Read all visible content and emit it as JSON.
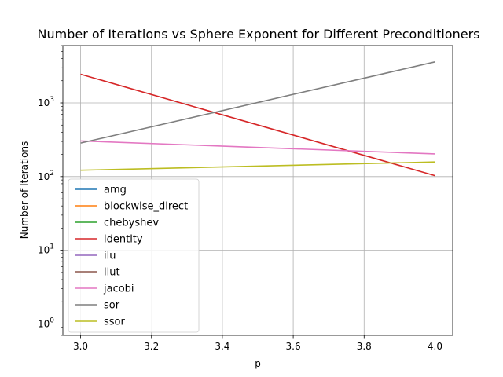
{
  "chart_data": {
    "type": "line",
    "title": "Number of Iterations vs Sphere Exponent for Different Preconditioners",
    "xlabel": "p",
    "ylabel": "Number of Iterations",
    "yscale": "log",
    "xlim": [
      2.95,
      4.05
    ],
    "ylim": [
      0.7,
      6000
    ],
    "x": [
      3.0,
      4.0
    ],
    "xticks": [
      3.0,
      3.2,
      3.4,
      3.6,
      3.8,
      4.0
    ],
    "xtick_labels": [
      "3.0",
      "3.2",
      "3.4",
      "3.6",
      "3.8",
      "4.0"
    ],
    "yticks": [
      1,
      10,
      100,
      1000
    ],
    "ytick_labels": [
      "10",
      "10",
      "10",
      "10"
    ],
    "ytick_exponents": [
      "0",
      "1",
      "2",
      "3"
    ],
    "grid": true,
    "legend_position": "lower-left",
    "series": [
      {
        "name": "amg",
        "color": "#1f77b4",
        "values": [
          null,
          null
        ]
      },
      {
        "name": "blockwise_direct",
        "color": "#ff7f0e",
        "values": [
          null,
          null
        ]
      },
      {
        "name": "chebyshev",
        "color": "#2ca02c",
        "values": [
          null,
          null
        ]
      },
      {
        "name": "identity",
        "color": "#d62728",
        "values": [
          2450,
          103
        ]
      },
      {
        "name": "ilu",
        "color": "#9467bd",
        "values": [
          null,
          null
        ]
      },
      {
        "name": "ilut",
        "color": "#8c564b",
        "values": [
          null,
          null
        ]
      },
      {
        "name": "jacobi",
        "color": "#e377c2",
        "values": [
          305,
          203
        ]
      },
      {
        "name": "sor",
        "color": "#7f7f7f",
        "values": [
          285,
          3600
        ]
      },
      {
        "name": "ssor",
        "color": "#bcbd22",
        "values": [
          122,
          158
        ]
      }
    ]
  }
}
